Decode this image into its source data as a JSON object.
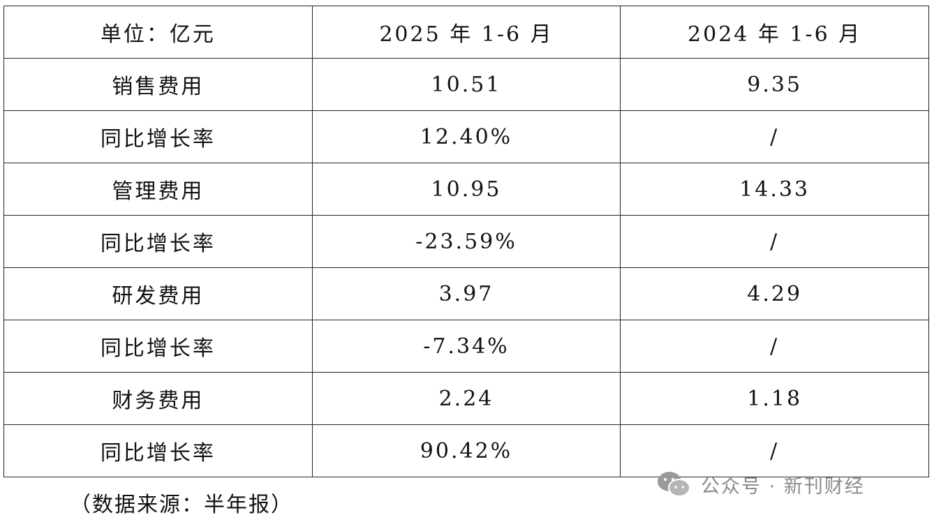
{
  "table": {
    "header": [
      "单位：亿元",
      "2025 年 1-6 月",
      "2024 年 1-6 月"
    ],
    "rows": [
      [
        "销售费用",
        "10.51",
        "9.35"
      ],
      [
        "同比增长率",
        "12.40%",
        "/"
      ],
      [
        "管理费用",
        "10.95",
        "14.33"
      ],
      [
        "同比增长率",
        "-23.59%",
        "/"
      ],
      [
        "研发费用",
        "3.97",
        "4.29"
      ],
      [
        "同比增长率",
        "-7.34%",
        "/"
      ],
      [
        "财务费用",
        "2.24",
        "1.18"
      ],
      [
        "同比增长率",
        "90.42%",
        "/"
      ]
    ]
  },
  "note": "（数据来源：半年报）",
  "watermark": "公众号 · 新刊财经"
}
